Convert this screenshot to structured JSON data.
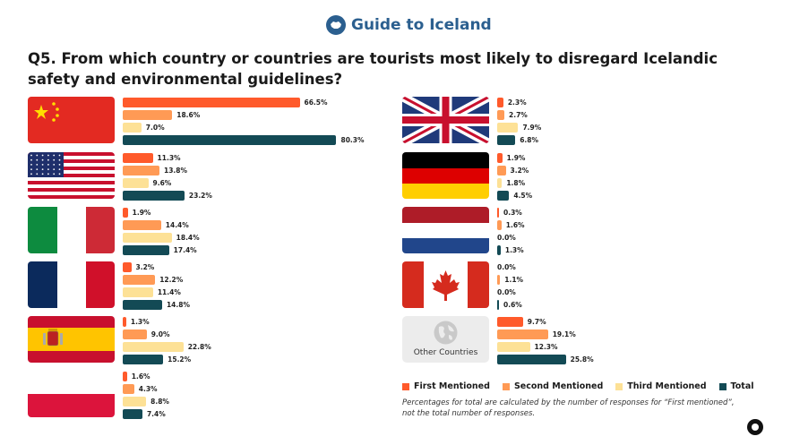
{
  "header": {
    "brand": "Guide to Iceland"
  },
  "question": "Q5. From which country or countries are tourists most likely to disregard Icelandic safety and environmental guidelines?",
  "chart_data": {
    "type": "bar",
    "orientation": "horizontal",
    "title": "Q5. From which country or countries are tourists most likely to disregard Icelandic safety and environmental guidelines?",
    "unit": "%",
    "series": [
      {
        "name": "First Mentioned",
        "color": "#ff5a2b"
      },
      {
        "name": "Second Mentioned",
        "color": "#ff9a55"
      },
      {
        "name": "Third Mentioned",
        "color": "#fde196"
      },
      {
        "name": "Total",
        "color": "#134a55"
      }
    ],
    "groups": [
      {
        "flag": "flag-china",
        "values": [
          66.5,
          18.6,
          7.0,
          80.3
        ]
      },
      {
        "flag": "flag-usa",
        "values": [
          11.3,
          13.8,
          9.6,
          23.2
        ]
      },
      {
        "flag": "flag-italy",
        "values": [
          1.9,
          14.4,
          18.4,
          17.4
        ]
      },
      {
        "flag": "flag-france",
        "values": [
          3.2,
          12.2,
          11.4,
          14.8
        ]
      },
      {
        "flag": "flag-spain",
        "values": [
          1.3,
          9.0,
          22.8,
          15.2
        ]
      },
      {
        "flag": "flag-poland",
        "values": [
          1.6,
          4.3,
          8.8,
          7.4
        ]
      },
      {
        "flag": "flag-uk",
        "values": [
          2.3,
          2.7,
          7.9,
          6.8
        ]
      },
      {
        "flag": "flag-germany",
        "values": [
          1.9,
          3.2,
          1.8,
          4.5
        ]
      },
      {
        "flag": "flag-netherlands",
        "values": [
          0.3,
          1.6,
          0.0,
          1.3
        ]
      },
      {
        "flag": "flag-canada",
        "values": [
          0.0,
          1.1,
          0.0,
          0.6
        ]
      },
      {
        "flag": "globe-icon",
        "label": "Other Countries",
        "values": [
          9.7,
          19.1,
          12.3,
          25.8
        ]
      }
    ],
    "legend_position": "bottom-right",
    "note": "Percentages for total are calculated by the number of responses for “First mentioned”, not the total number of responses."
  }
}
